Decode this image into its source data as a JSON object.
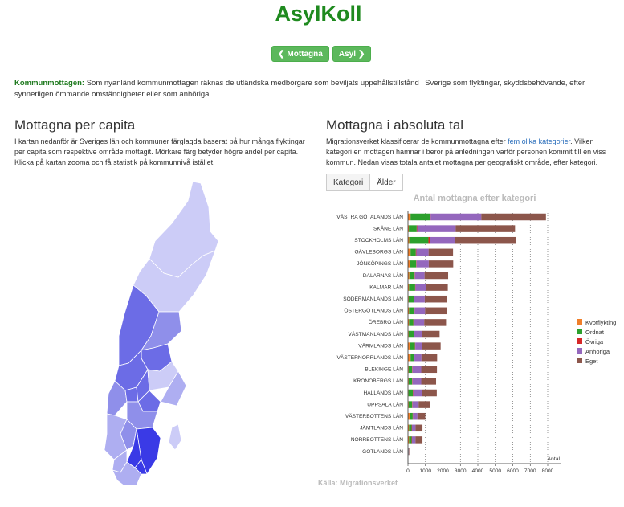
{
  "page": {
    "title": "AsylKoll",
    "nav": {
      "prev_label": "Mottagna",
      "next_label": "Asyl"
    },
    "intro_lead": "Kommunmottagen:",
    "intro_text": " Som nyanländ kommunmottagen räknas de utländska medborgare som beviljats uppehållstillstånd i Sverige som flyktingar, skyddsbehövande, efter synnerligen ömmande omständigheter eller som anhöriga."
  },
  "left": {
    "title": "Mottagna per capita",
    "text": "I kartan nedanför är Sveriges län och kommuner färglagda baserat på hur många flyktingar per capita som respektive område mottagit. Mörkare färg betyder högre andel per capita. Klicka på kartan zooma och få statistik på kommunnivå istället."
  },
  "right": {
    "title": "Mottagna i absoluta tal",
    "text_before_link": "Migrationsverket klassificerar de kommunmottagna efter ",
    "link_text": "fem olika kategorier",
    "text_after_link": ". Vilken kategori en mottagen hamnar i beror på anledningen varför personen kommit till en viss kommun. Nedan visas totala antalet mottagna per geografiskt område, efter kategori.",
    "tabs": [
      "Kategori",
      "Ålder"
    ],
    "source": "Källa: Migrationsverket"
  },
  "map_colors": {
    "lightest": "#ccccf7",
    "light": "#aeaef1",
    "medium": "#8f8fea",
    "dark": "#6c6ce6",
    "darkest": "#3a3ae6",
    "border": "#ffffff"
  },
  "chart_data": {
    "type": "bar",
    "orientation": "horizontal",
    "stacked": true,
    "title": "Antal mottagna efter kategori",
    "xlabel": "Antal",
    "xlim": [
      0,
      8000
    ],
    "xticks": [
      0,
      1000,
      2000,
      3000,
      4000,
      5000,
      6000,
      7000,
      8000
    ],
    "grid": "vertical dotted",
    "legend_position": "right",
    "categories": [
      "VÄSTRA GÖTALANDS LÄN",
      "SKÅNE LÄN",
      "STOCKHOLMS LÄN",
      "GÄVLEBORGS LÄN",
      "JÖNKÖPINGS LÄN",
      "DALARNAS LÄN",
      "KALMAR LÄN",
      "SÖDERMANLANDS LÄN",
      "ÖSTERGÖTLANDS LÄN",
      "ÖREBRO LÄN",
      "VÄSTMANLANDS LÄN",
      "VÄRMLANDS LÄN",
      "VÄSTERNORRLANDS LÄN",
      "BLEKINGE LÄN",
      "KRONOBERGS LÄN",
      "HALLANDS LÄN",
      "UPPSALA LÄN",
      "VÄSTERBOTTENS LÄN",
      "JÄMTLANDS LÄN",
      "NORRBOTTENS LÄN",
      "GOTLANDS LÄN"
    ],
    "series": [
      {
        "name": "Kvotflykting",
        "color": "#f07f2a",
        "values": [
          150,
          50,
          70,
          150,
          120,
          80,
          60,
          40,
          60,
          60,
          40,
          100,
          150,
          40,
          40,
          30,
          40,
          120,
          60,
          60,
          10
        ]
      },
      {
        "name": "Ordnat",
        "color": "#2ca02c",
        "values": [
          1100,
          450,
          1100,
          300,
          350,
          300,
          350,
          300,
          300,
          250,
          300,
          300,
          200,
          200,
          200,
          250,
          200,
          150,
          150,
          150,
          20
        ]
      },
      {
        "name": "Övriga",
        "color": "#d62728",
        "values": [
          50,
          30,
          100,
          30,
          20,
          20,
          20,
          20,
          20,
          20,
          20,
          20,
          20,
          20,
          20,
          20,
          20,
          20,
          20,
          20,
          5
        ]
      },
      {
        "name": "Anhöriga",
        "color": "#9467bd",
        "values": [
          2900,
          2200,
          1400,
          700,
          700,
          550,
          600,
          600,
          600,
          600,
          450,
          400,
          400,
          500,
          500,
          500,
          350,
          250,
          200,
          200,
          20
        ]
      },
      {
        "name": "Eget",
        "color": "#8c564b",
        "values": [
          3700,
          3400,
          3500,
          1400,
          1400,
          1350,
          1250,
          1250,
          1250,
          1250,
          1000,
          1050,
          900,
          900,
          850,
          850,
          650,
          450,
          400,
          400,
          25
        ]
      }
    ]
  }
}
